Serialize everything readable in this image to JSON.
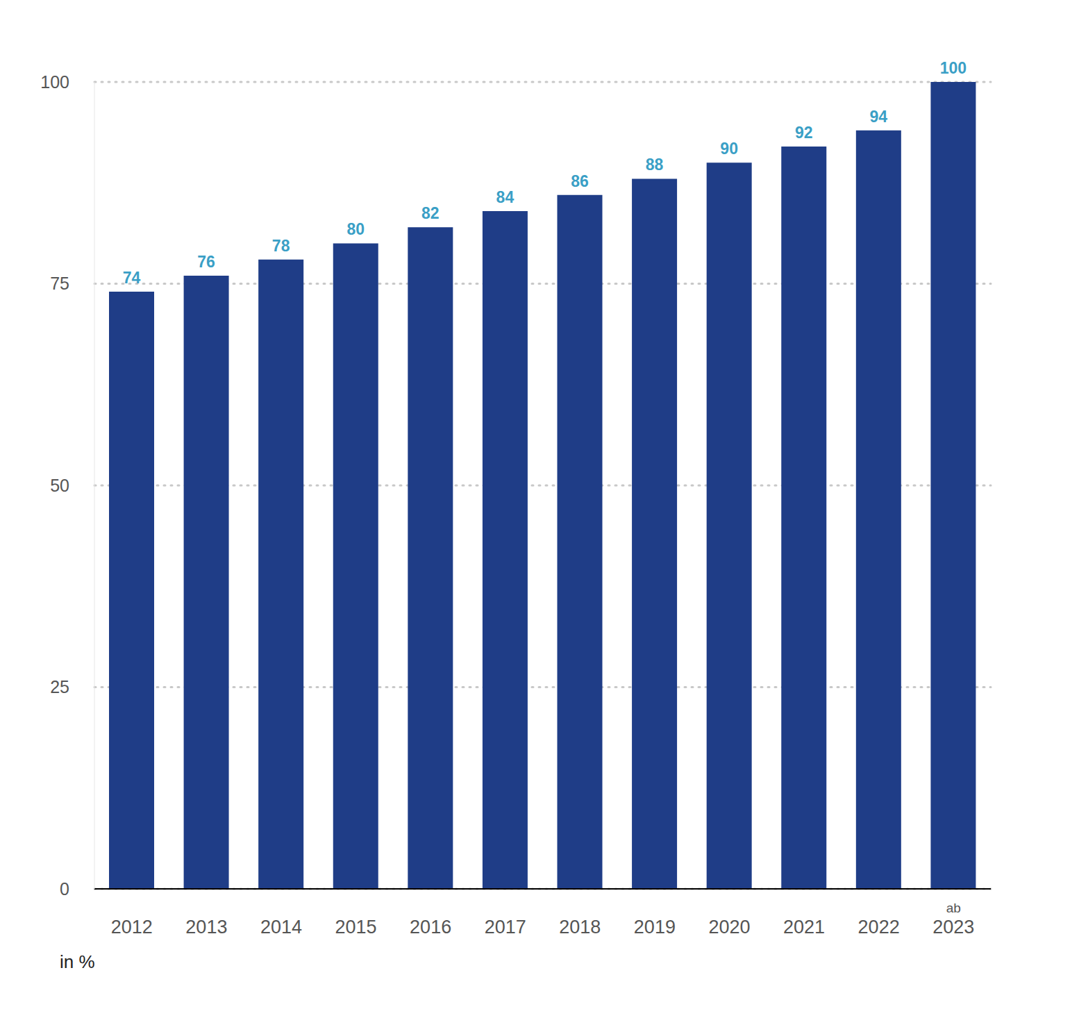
{
  "chart_data": {
    "type": "bar",
    "y_label": "in %",
    "categories": [
      "2012",
      "2013",
      "2014",
      "2015",
      "2016",
      "2017",
      "2018",
      "2019",
      "2020",
      "2021",
      "2022",
      "ab 2023"
    ],
    "values": [
      74,
      76,
      78,
      80,
      82,
      84,
      86,
      88,
      90,
      92,
      94,
      100
    ],
    "color": "#1f3d87",
    "ylim": [
      0,
      100
    ],
    "yticks": [
      0,
      25,
      50,
      75,
      100
    ],
    "grid": true,
    "data_labels": true
  }
}
